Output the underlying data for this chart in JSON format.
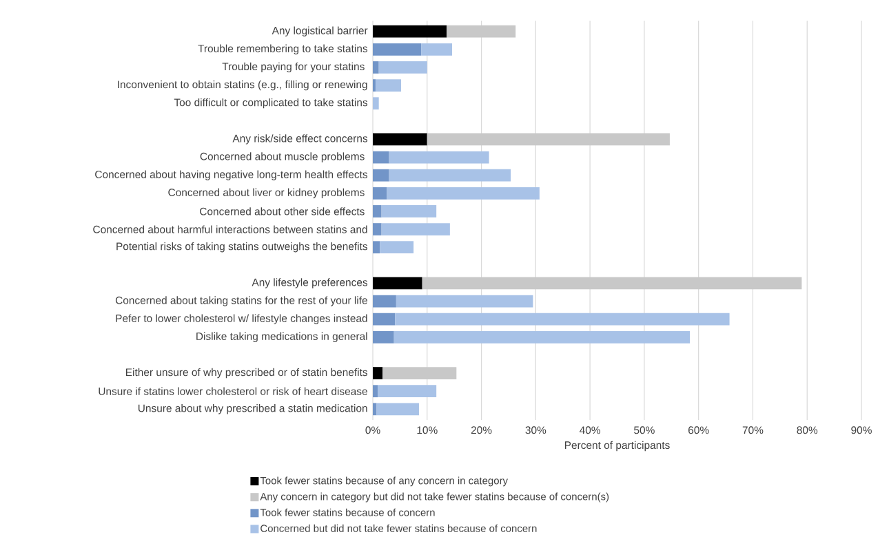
{
  "chart_data": {
    "type": "bar",
    "orientation": "horizontal",
    "stacked": true,
    "xlabel": "Percent of participants",
    "categories": [
      "Any logistical barrier",
      "Trouble remembering to take statins",
      "Trouble paying for your statins ",
      "Inconvenient to obtain statins (e.g., filling or renewing",
      "Too difficult or complicated to take statins",
      null,
      "Any risk/side effect concerns",
      "Concerned about muscle problems ",
      "Concerned about having negative long-term health effects",
      "Concerned about liver or kidney problems ",
      "Concerned about other side effects ",
      "Concerned about harmful interactions between statins and",
      "Potential risks of taking statins outweighs the benefits",
      null,
      "Any lifestyle preferences",
      "Concerned about taking statins for the rest of your life",
      "Pefer to lower cholesterol w/ lifestyle changes instead",
      "Dislike taking medications in general",
      null,
      "Either unsure of why prescribed or of statin benefits",
      "Unsure if statins lower  cholesterol or  risk of heart disease",
      "Unsure about why prescribed a statin medication"
    ],
    "series": [
      {
        "name": "Took fewer statins because of any concern in category",
        "color": "#000000",
        "values": [
          13.6,
          null,
          null,
          null,
          null,
          null,
          10.0,
          null,
          null,
          null,
          null,
          null,
          null,
          null,
          9.1,
          null,
          null,
          null,
          null,
          1.8,
          null,
          null
        ]
      },
      {
        "name": "Any concern in category but did not take fewer statins because of concern(s)",
        "color": "#c8c8c8",
        "values": [
          12.7,
          null,
          null,
          null,
          null,
          null,
          44.7,
          null,
          null,
          null,
          null,
          null,
          null,
          null,
          69.9,
          null,
          null,
          null,
          null,
          13.6,
          null,
          null
        ]
      },
      {
        "name": "Took fewer statins because of concern",
        "color": "#7295c8",
        "values": [
          null,
          8.9,
          1.1,
          0.5,
          null,
          null,
          null,
          3.0,
          3.0,
          2.6,
          1.6,
          1.6,
          1.3,
          null,
          null,
          4.3,
          4.1,
          3.9,
          null,
          null,
          0.9,
          0.7
        ]
      },
      {
        "name": "Concerned but did not take fewer statins because of concern",
        "color": "#a8c2e7",
        "values": [
          null,
          5.7,
          8.9,
          4.7,
          1.1,
          null,
          null,
          18.4,
          22.4,
          28.1,
          10.1,
          12.6,
          6.2,
          null,
          null,
          25.2,
          61.6,
          54.5,
          null,
          null,
          10.8,
          7.8
        ]
      }
    ],
    "xlim": [
      0,
      90
    ],
    "xticks": [
      {
        "value": 0,
        "label": "0%"
      },
      {
        "value": 10,
        "label": "10%"
      },
      {
        "value": 20,
        "label": "20%"
      },
      {
        "value": 30,
        "label": "30%"
      },
      {
        "value": 40,
        "label": "40%"
      },
      {
        "value": 50,
        "label": "50%"
      },
      {
        "value": 60,
        "label": "60%"
      },
      {
        "value": 70,
        "label": "70%"
      },
      {
        "value": 80,
        "label": "80%"
      },
      {
        "value": 90,
        "label": "90%"
      }
    ],
    "grid": "x",
    "legend": "bottom"
  }
}
